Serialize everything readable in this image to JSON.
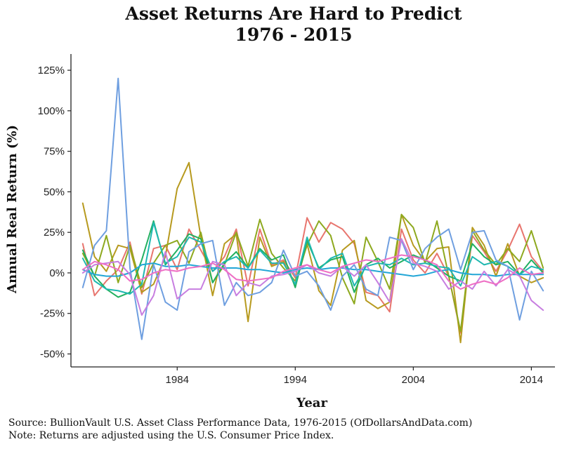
{
  "chart_data": {
    "type": "line",
    "title_line1": "Asset Returns Are Hard to Predict",
    "title_line2": "1976 - 2015",
    "xlabel": "Year",
    "ylabel": "Annual Real Return (%)",
    "xlim": [
      1975,
      2016
    ],
    "ylim": [
      -0.58,
      1.35
    ],
    "x_ticks": [
      1984,
      1994,
      2004,
      2014
    ],
    "y_ticks": [
      -0.5,
      -0.25,
      0,
      0.25,
      0.5,
      0.75,
      1.0,
      1.25
    ],
    "y_tick_labels": [
      "-50%",
      "-25%",
      "0%",
      "25%",
      "50%",
      "75%",
      "100%",
      "125%"
    ],
    "grid": false,
    "legend": "none",
    "x": [
      1976,
      1977,
      1978,
      1979,
      1980,
      1981,
      1982,
      1983,
      1984,
      1985,
      1986,
      1987,
      1988,
      1989,
      1990,
      1991,
      1992,
      1993,
      1994,
      1995,
      1996,
      1997,
      1998,
      1999,
      2000,
      2001,
      2002,
      2003,
      2004,
      2005,
      2006,
      2007,
      2008,
      2009,
      2010,
      2011,
      2012,
      2013,
      2014,
      2015
    ],
    "series": [
      {
        "color": "#e8756e",
        "values": [
          0.18,
          -0.14,
          -0.05,
          0.02,
          0.19,
          -0.13,
          0.15,
          0.17,
          0.02,
          0.27,
          0.14,
          0.01,
          0.1,
          0.27,
          -0.08,
          0.27,
          0.05,
          0.08,
          -0.03,
          0.34,
          0.19,
          0.31,
          0.27,
          0.18,
          -0.12,
          -0.14,
          -0.24,
          0.27,
          0.08,
          0.0,
          0.12,
          -0.02,
          -0.37,
          0.23,
          0.13,
          0.01,
          0.14,
          0.3,
          0.1,
          0.01
        ]
      },
      {
        "color": "#b79a1f",
        "values": [
          0.43,
          0.1,
          0.01,
          0.17,
          0.15,
          -0.12,
          -0.07,
          0.1,
          0.52,
          0.68,
          0.22,
          -0.14,
          0.18,
          0.24,
          -0.3,
          0.22,
          0.04,
          0.07,
          -0.08,
          0.18,
          -0.11,
          -0.2,
          0.14,
          0.2,
          -0.17,
          -0.22,
          -0.18,
          0.36,
          0.17,
          0.07,
          0.15,
          0.16,
          -0.43,
          0.28,
          0.17,
          -0.02,
          0.18,
          -0.02,
          -0.06,
          -0.03
        ]
      },
      {
        "color": "#8ea91f",
        "values": [
          0.12,
          -0.02,
          0.23,
          -0.06,
          0.17,
          -0.09,
          0.06,
          0.17,
          0.2,
          0.06,
          0.25,
          -0.06,
          0.05,
          0.25,
          0.04,
          0.33,
          0.12,
          0.03,
          -0.05,
          0.17,
          0.32,
          0.23,
          -0.03,
          -0.19,
          0.22,
          0.07,
          -0.1,
          0.36,
          0.28,
          0.06,
          0.32,
          -0.02,
          -0.36,
          0.26,
          0.14,
          0.05,
          0.15,
          0.07,
          0.26,
          0.03
        ]
      },
      {
        "color": "#22b060",
        "values": [
          0.14,
          -0.02,
          -0.1,
          -0.15,
          -0.12,
          0.08,
          0.32,
          0.05,
          0.14,
          0.24,
          0.21,
          -0.06,
          0.06,
          0.13,
          0.03,
          0.15,
          0.08,
          0.11,
          -0.09,
          0.2,
          0.03,
          0.08,
          0.1,
          -0.12,
          0.05,
          0.09,
          0.03,
          0.07,
          0.11,
          0.08,
          0.03,
          -0.02,
          -0.05,
          0.18,
          0.1,
          0.05,
          0.07,
          -0.01,
          0.08,
          0.0
        ]
      },
      {
        "color": "#1fb8b0",
        "values": [
          0.09,
          -0.05,
          -0.1,
          -0.11,
          -0.13,
          -0.07,
          0.31,
          0.06,
          0.1,
          0.22,
          0.19,
          0.01,
          0.07,
          0.1,
          0.03,
          0.14,
          0.06,
          0.06,
          -0.07,
          0.22,
          0.02,
          0.09,
          0.12,
          -0.08,
          0.04,
          0.06,
          0.05,
          0.09,
          0.05,
          0.06,
          0.04,
          0.03,
          -0.08,
          0.1,
          0.05,
          0.07,
          0.04,
          -0.01,
          0.04,
          0.02
        ]
      },
      {
        "color": "#22a6d6",
        "values": [
          0.02,
          -0.01,
          -0.02,
          -0.02,
          0.0,
          0.05,
          0.06,
          0.04,
          0.04,
          0.05,
          0.04,
          0.03,
          0.03,
          0.03,
          0.02,
          0.02,
          0.01,
          0.0,
          0.02,
          0.03,
          0.02,
          0.03,
          0.03,
          0.02,
          0.02,
          0.01,
          0.0,
          -0.01,
          -0.02,
          -0.01,
          0.01,
          0.02,
          0.0,
          -0.01,
          -0.01,
          -0.02,
          -0.01,
          -0.01,
          -0.01,
          -0.01
        ]
      },
      {
        "color": "#6f9fe0",
        "values": [
          -0.09,
          0.17,
          0.26,
          1.2,
          0.03,
          -0.41,
          0.05,
          -0.18,
          -0.23,
          0.13,
          0.18,
          0.2,
          -0.2,
          -0.06,
          -0.14,
          -0.12,
          -0.06,
          0.14,
          -0.02,
          0.01,
          -0.08,
          -0.23,
          -0.02,
          0.05,
          -0.1,
          -0.14,
          0.22,
          0.2,
          0.02,
          0.15,
          0.22,
          0.27,
          0.02,
          0.25,
          0.26,
          0.08,
          0.04,
          -0.29,
          0.01,
          -0.11
        ]
      },
      {
        "color": "#c77ee0",
        "values": [
          0.0,
          0.05,
          0.06,
          0.07,
          -0.01,
          -0.26,
          -0.14,
          0.13,
          -0.16,
          -0.1,
          -0.1,
          0.07,
          0.05,
          -0.14,
          -0.06,
          -0.08,
          -0.02,
          -0.01,
          0.01,
          0.05,
          0.0,
          -0.02,
          0.04,
          -0.02,
          0.05,
          -0.06,
          -0.18,
          0.21,
          0.06,
          0.04,
          0.01,
          -0.1,
          -0.05,
          -0.1,
          0.01,
          -0.08,
          0.02,
          -0.02,
          -0.17,
          -0.23
        ]
      },
      {
        "color": "#ee6fc4",
        "values": [
          0.02,
          0.07,
          0.05,
          0.02,
          -0.05,
          -0.04,
          0.0,
          0.02,
          0.01,
          0.03,
          0.04,
          0.06,
          0.02,
          -0.04,
          -0.05,
          -0.04,
          -0.03,
          0.01,
          0.03,
          0.05,
          0.02,
          0.0,
          0.04,
          0.06,
          0.08,
          0.07,
          0.09,
          0.11,
          0.1,
          0.08,
          0.05,
          -0.05,
          -0.1,
          -0.07,
          -0.05,
          -0.07,
          -0.03,
          0.03,
          -0.01,
          0.0
        ]
      }
    ],
    "caption_line1": "Source:  BullionVault U.S. Asset Class Performance Data, 1976-2015 (OfDollarsAndData.com)",
    "caption_line2": "Note:  Returns are adjusted using the U.S. Consumer Price Index."
  }
}
